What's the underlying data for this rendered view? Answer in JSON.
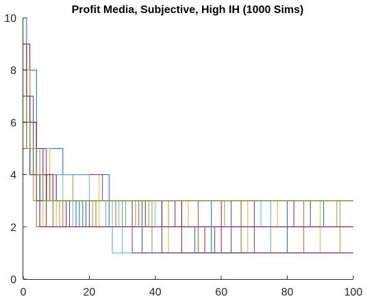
{
  "chart_data": {
    "type": "line",
    "title": "Profit Media, Subjective, High IH (1000 Sims)",
    "xlabel": "",
    "ylabel": "",
    "xlim": [
      0,
      100
    ],
    "ylim": [
      0,
      10
    ],
    "x_ticks": [
      "0",
      "20",
      "40",
      "60",
      "80",
      "100"
    ],
    "y_ticks": [
      "0",
      "2",
      "4",
      "6",
      "8",
      "10"
    ],
    "grid": false,
    "legend": "none",
    "step_style": "post",
    "colors": [
      "#0072BD",
      "#D95319",
      "#EDB120",
      "#7E2F8E",
      "#77AC30",
      "#4DBEEE",
      "#A2142F"
    ],
    "series": [
      {
        "x": [
          0,
          1,
          4,
          12,
          26,
          100
        ],
        "y": [
          10,
          8,
          5,
          4,
          3,
          3
        ]
      },
      {
        "x": [
          0,
          1,
          2,
          5,
          100
        ],
        "y": [
          9,
          6,
          5,
          3,
          3
        ]
      },
      {
        "x": [
          0,
          1,
          3,
          4,
          8,
          23,
          100
        ],
        "y": [
          9,
          7,
          6,
          5,
          4,
          3,
          3
        ]
      },
      {
        "x": [
          0,
          1,
          3,
          7,
          24,
          100
        ],
        "y": [
          8,
          7,
          5,
          4,
          3,
          3
        ]
      },
      {
        "x": [
          0,
          1,
          2,
          4,
          15,
          100
        ],
        "y": [
          8,
          6,
          5,
          4,
          3,
          3
        ]
      },
      {
        "x": [
          0,
          2,
          6,
          20,
          100
        ],
        "y": [
          6,
          5,
          4,
          3,
          3
        ]
      },
      {
        "x": [
          0,
          1,
          3,
          6,
          11,
          100
        ],
        "y": [
          7,
          6,
          4,
          3,
          2,
          2
        ]
      },
      {
        "x": [
          0,
          2,
          4,
          7,
          18,
          100
        ],
        "y": [
          7,
          5,
          4,
          3,
          2,
          2
        ]
      },
      {
        "x": [
          0,
          1,
          2,
          5,
          9,
          100
        ],
        "y": [
          6,
          5,
          4,
          3,
          2,
          2
        ]
      },
      {
        "x": [
          0,
          1,
          3,
          5,
          14,
          27,
          100
        ],
        "y": [
          9,
          6,
          5,
          3,
          2,
          1,
          1
        ]
      },
      {
        "x": [
          0,
          2,
          4,
          9,
          30,
          100
        ],
        "y": [
          8,
          5,
          4,
          3,
          2,
          2
        ]
      },
      {
        "x": [
          0,
          1,
          2,
          3,
          21,
          100
        ],
        "y": [
          8,
          6,
          4,
          3,
          2,
          2
        ]
      },
      {
        "x": [
          0,
          2,
          5,
          10,
          40,
          100
        ],
        "y": [
          7,
          5,
          4,
          3,
          2,
          2
        ]
      },
      {
        "x": [
          0,
          1,
          3,
          4,
          13,
          55,
          100
        ],
        "y": [
          6,
          5,
          4,
          3,
          2,
          1,
          1
        ]
      },
      {
        "x": [
          0,
          1,
          2,
          6,
          16,
          100
        ],
        "y": [
          5,
          5,
          4,
          3,
          2,
          2
        ]
      },
      {
        "x": [
          0,
          2,
          3,
          6,
          28,
          100
        ],
        "y": [
          7,
          6,
          4,
          3,
          2,
          2
        ]
      },
      {
        "x": [
          0,
          1,
          4,
          8,
          33,
          100
        ],
        "y": [
          8,
          6,
          4,
          3,
          2,
          2
        ]
      },
      {
        "x": [
          0,
          2,
          3,
          5,
          44,
          100
        ],
        "y": [
          6,
          5,
          4,
          3,
          2,
          2
        ]
      },
      {
        "x": [
          0,
          1,
          3,
          7,
          11,
          100
        ],
        "y": [
          7,
          5,
          4,
          3,
          2,
          2
        ]
      },
      {
        "x": [
          0,
          1,
          2,
          4,
          25,
          100
        ],
        "y": [
          9,
          6,
          5,
          3,
          2,
          2
        ]
      },
      {
        "x": [
          0,
          2,
          4,
          6,
          37,
          100
        ],
        "y": [
          5,
          5,
          4,
          3,
          2,
          2
        ]
      },
      {
        "x": [
          0,
          1,
          3,
          5,
          19,
          52,
          100
        ],
        "y": [
          8,
          6,
          4,
          3,
          2,
          1,
          1
        ]
      },
      {
        "x": [
          0,
          1,
          2,
          5,
          12,
          100
        ],
        "y": [
          7,
          5,
          4,
          3,
          2,
          2
        ]
      },
      {
        "x": [
          0,
          2,
          3,
          8,
          23,
          100
        ],
        "y": [
          6,
          5,
          4,
          3,
          2,
          2
        ]
      },
      {
        "x": [
          0,
          1,
          4,
          6,
          48,
          100
        ],
        "y": [
          8,
          6,
          4,
          3,
          2,
          2
        ]
      },
      {
        "x": [
          0,
          1,
          3,
          5,
          31,
          100
        ],
        "y": [
          7,
          6,
          4,
          3,
          2,
          2
        ]
      },
      {
        "x": [
          0,
          2,
          4,
          7,
          15,
          100
        ],
        "y": [
          9,
          5,
          4,
          3,
          2,
          2
        ]
      },
      {
        "x": [
          0,
          1,
          2,
          6,
          42,
          100
        ],
        "y": [
          5,
          5,
          4,
          3,
          2,
          2
        ]
      },
      {
        "x": [
          0,
          1,
          3,
          4,
          26,
          100
        ],
        "y": [
          7,
          5,
          4,
          3,
          2,
          2
        ]
      },
      {
        "x": [
          0,
          2,
          3,
          9,
          35,
          100
        ],
        "y": [
          8,
          6,
          4,
          3,
          2,
          2
        ]
      },
      {
        "x": [
          0,
          1,
          2,
          5,
          10,
          100
        ],
        "y": [
          6,
          5,
          4,
          3,
          2,
          2
        ]
      },
      {
        "x": [
          0,
          1,
          3,
          6,
          20,
          58,
          100
        ],
        "y": [
          8,
          5,
          4,
          3,
          2,
          1,
          1
        ]
      },
      {
        "x": [
          0,
          2,
          4,
          5,
          38,
          100
        ],
        "y": [
          7,
          6,
          4,
          3,
          2,
          2
        ]
      },
      {
        "x": [
          0,
          1,
          2,
          7,
          29,
          100
        ],
        "y": [
          9,
          5,
          4,
          3,
          2,
          2
        ]
      },
      {
        "x": [
          0,
          1,
          3,
          8,
          46,
          100
        ],
        "y": [
          6,
          5,
          4,
          3,
          2,
          2
        ]
      },
      {
        "x": [
          0,
          1,
          2,
          3,
          5,
          17,
          100
        ],
        "y": [
          9,
          7,
          5,
          4,
          3,
          2,
          2
        ]
      },
      {
        "x": [
          0,
          1,
          3,
          5,
          22,
          100
        ],
        "y": [
          8,
          6,
          4,
          3,
          2,
          2
        ]
      },
      {
        "x": [
          0,
          2,
          4,
          9,
          50,
          100
        ],
        "y": [
          7,
          5,
          4,
          3,
          2,
          2
        ]
      },
      {
        "x": [
          0,
          1,
          2,
          6,
          14,
          100
        ],
        "y": [
          6,
          5,
          4,
          3,
          2,
          2
        ]
      },
      {
        "x": [
          0,
          1,
          3,
          4,
          34,
          100
        ],
        "y": [
          8,
          6,
          4,
          3,
          2,
          2
        ]
      },
      {
        "x": [
          0,
          1,
          2,
          4,
          7,
          27,
          100
        ],
        "y": [
          8,
          6,
          5,
          4,
          3,
          1,
          1
        ]
      },
      {
        "x": [
          0,
          2,
          3,
          6,
          60,
          100
        ],
        "y": [
          7,
          6,
          5,
          3,
          1,
          1
        ]
      },
      {
        "x": [
          0,
          1,
          3,
          5,
          36,
          100
        ],
        "y": [
          9,
          6,
          4,
          3,
          1,
          1
        ]
      },
      {
        "x": [
          0,
          1,
          2,
          8,
          66,
          100
        ],
        "y": [
          6,
          5,
          4,
          3,
          1,
          1
        ]
      },
      {
        "x": [
          0,
          1,
          4,
          7,
          44,
          100
        ],
        "y": [
          8,
          5,
          4,
          3,
          1,
          1
        ]
      },
      {
        "x": [
          0,
          2,
          3,
          5,
          70,
          100
        ],
        "y": [
          7,
          5,
          4,
          3,
          1,
          1
        ]
      },
      {
        "x": [
          0,
          1,
          2,
          6,
          39,
          100
        ],
        "y": [
          8,
          6,
          4,
          3,
          1,
          1
        ]
      },
      {
        "x": [
          0,
          1,
          3,
          4,
          75,
          100
        ],
        "y": [
          6,
          5,
          4,
          3,
          1,
          1
        ]
      },
      {
        "x": [
          0,
          2,
          4,
          10,
          48,
          100
        ],
        "y": [
          9,
          6,
          4,
          3,
          1,
          1
        ]
      },
      {
        "x": [
          0,
          1,
          2,
          5,
          80,
          100
        ],
        "y": [
          7,
          5,
          4,
          3,
          1,
          1
        ]
      },
      {
        "x": [
          0,
          1,
          3,
          7,
          53,
          100
        ],
        "y": [
          8,
          6,
          4,
          3,
          1,
          1
        ]
      },
      {
        "x": [
          0,
          1,
          2,
          4,
          90,
          100
        ],
        "y": [
          6,
          5,
          4,
          3,
          1,
          1
        ]
      },
      {
        "x": [
          0,
          2,
          3,
          6,
          63,
          100
        ],
        "y": [
          7,
          6,
          4,
          3,
          1,
          1
        ]
      },
      {
        "x": [
          0,
          1,
          4,
          8,
          96,
          100
        ],
        "y": [
          8,
          5,
          4,
          3,
          1,
          1
        ]
      },
      {
        "x": [
          0,
          1,
          2,
          3,
          12,
          30,
          100
        ],
        "y": [
          9,
          7,
          5,
          4,
          3,
          1,
          1
        ]
      },
      {
        "x": [
          0,
          1,
          3,
          5,
          42,
          100
        ],
        "y": [
          6,
          5,
          4,
          3,
          1,
          1
        ]
      },
      {
        "x": [
          0,
          1,
          2,
          7,
          57,
          100
        ],
        "y": [
          8,
          6,
          4,
          3,
          1,
          1
        ]
      },
      {
        "x": [
          0,
          2,
          4,
          5,
          85,
          100
        ],
        "y": [
          7,
          5,
          4,
          3,
          1,
          1
        ]
      },
      {
        "x": [
          0,
          1,
          3,
          9,
          68,
          100
        ],
        "y": [
          9,
          6,
          4,
          3,
          1,
          1
        ]
      },
      {
        "x": [
          0,
          1,
          2,
          4,
          33,
          100
        ],
        "y": [
          6,
          5,
          4,
          3,
          1,
          1
        ]
      },
      {
        "x": [
          0,
          1,
          3,
          6,
          61,
          100
        ],
        "y": [
          8,
          6,
          4,
          3,
          2,
          2
        ]
      },
      {
        "x": [
          0,
          2,
          3,
          5,
          72,
          100
        ],
        "y": [
          7,
          5,
          4,
          3,
          2,
          2
        ]
      },
      {
        "x": [
          0,
          1,
          2,
          7,
          82,
          100
        ],
        "y": [
          6,
          5,
          4,
          3,
          2,
          2
        ]
      },
      {
        "x": [
          0,
          1,
          4,
          6,
          91,
          100
        ],
        "y": [
          8,
          6,
          4,
          3,
          2,
          2
        ]
      },
      {
        "x": [
          0,
          1,
          2,
          5,
          66,
          100
        ],
        "y": [
          9,
          5,
          4,
          3,
          2,
          2
        ]
      },
      {
        "x": [
          0,
          2,
          3,
          8,
          77,
          100
        ],
        "y": [
          7,
          6,
          4,
          3,
          2,
          2
        ]
      },
      {
        "x": [
          0,
          1,
          3,
          4,
          87,
          100
        ],
        "y": [
          6,
          5,
          4,
          3,
          2,
          2
        ]
      },
      {
        "x": [
          0,
          1,
          2,
          6,
          95,
          100
        ],
        "y": [
          8,
          5,
          4,
          3,
          2,
          2
        ]
      },
      {
        "x": [
          0,
          1,
          2,
          3,
          5,
          100
        ],
        "y": [
          8,
          6,
          5,
          4,
          2,
          2
        ]
      },
      {
        "x": [
          0,
          2,
          4,
          7,
          100
        ],
        "y": [
          7,
          5,
          4,
          2,
          2
        ]
      },
      {
        "x": [
          0,
          1,
          3,
          5,
          100
        ],
        "y": [
          9,
          6,
          4,
          2,
          2
        ]
      },
      {
        "x": [
          0,
          1,
          2,
          4,
          100
        ],
        "y": [
          6,
          5,
          4,
          2,
          2
        ]
      },
      {
        "x": [
          0,
          1,
          3,
          6,
          100
        ],
        "y": [
          8,
          5,
          4,
          2,
          2
        ]
      },
      {
        "x": [
          0,
          2,
          3,
          5,
          100
        ],
        "y": [
          7,
          6,
          4,
          2,
          2
        ]
      },
      {
        "x": [
          0,
          1,
          2,
          5,
          70,
          100
        ],
        "y": [
          9,
          6,
          4,
          3,
          3,
          3
        ]
      },
      {
        "x": [
          0,
          1,
          3,
          6,
          78,
          100
        ],
        "y": [
          8,
          5,
          4,
          3,
          3,
          3
        ]
      },
      {
        "x": [
          0,
          2,
          4,
          7,
          82,
          100
        ],
        "y": [
          7,
          6,
          4,
          3,
          3,
          3
        ]
      },
      {
        "x": [
          0,
          1,
          2,
          5,
          100
        ],
        "y": [
          6,
          5,
          4,
          3,
          3
        ]
      },
      {
        "x": [
          0,
          1,
          3,
          8,
          100
        ],
        "y": [
          9,
          5,
          4,
          3,
          3
        ]
      },
      {
        "x": [
          0,
          2,
          3,
          6,
          100
        ],
        "y": [
          8,
          6,
          4,
          3,
          3
        ]
      },
      {
        "x": [
          0,
          1,
          2,
          3,
          9,
          100
        ],
        "y": [
          9,
          7,
          6,
          4,
          3,
          3
        ]
      },
      {
        "x": [
          0,
          1,
          4,
          6,
          100
        ],
        "y": [
          7,
          5,
          4,
          3,
          3
        ]
      }
    ]
  }
}
